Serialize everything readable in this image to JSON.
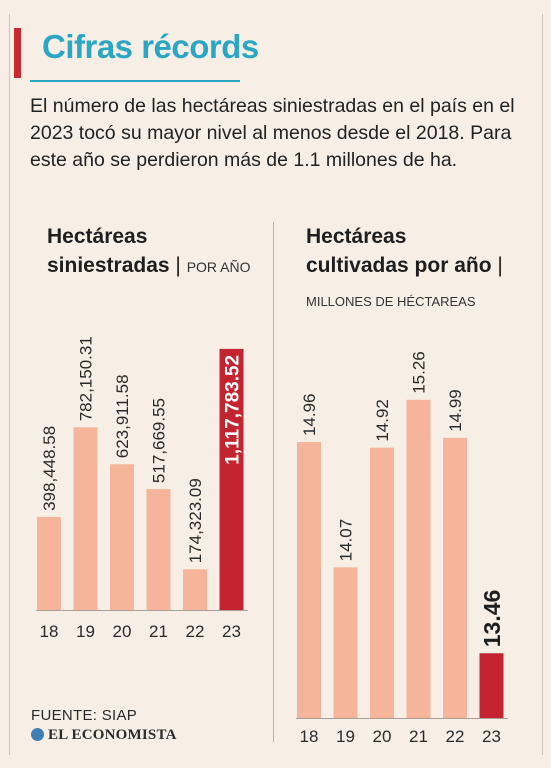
{
  "header": {
    "title": "Cifras récords",
    "intro": "El número de las hectáreas siniestradas en el país en el 2023 tocó su mayor nivel al menos desde el 2018. Para este año se perdieron más de 1.1 millones de ha."
  },
  "colors": {
    "bar": "#f6b49a",
    "highlight": "#c32430",
    "title": "#2ba7c4"
  },
  "chart_data": [
    {
      "type": "bar",
      "title_line1": "Hectáreas",
      "title_line2": "siniestradas",
      "unit": "POR AÑO",
      "categories": [
        "18",
        "19",
        "20",
        "21",
        "22",
        "23"
      ],
      "values": [
        398448.58,
        782150.31,
        623911.58,
        517669.55,
        174323.09,
        1117783.52
      ],
      "labels": [
        "398,448.58",
        "782,150.31",
        "623,911.58",
        "517,669.55",
        "174,323.09",
        "1,117,783.52"
      ],
      "highlight_index": 5,
      "ylim": [
        0,
        1250000
      ]
    },
    {
      "type": "bar",
      "title_line1": "Hectáreas",
      "title_line2": "cultivadas por año",
      "unit": "MILLONES DE HÉCTAREAS",
      "categories": [
        "18",
        "19",
        "20",
        "21",
        "22",
        "23"
      ],
      "values": [
        14.96,
        14.07,
        14.92,
        15.26,
        14.99,
        13.46
      ],
      "labels": [
        "14.96",
        "14.07",
        "14.92",
        "15.26",
        "14.99",
        "13.46"
      ],
      "highlight_index": 5,
      "ylim": [
        13.0,
        15.5
      ]
    }
  ],
  "footer": {
    "source": "FUENTE: SIAP",
    "brand": "EL ECONOMISTA"
  }
}
